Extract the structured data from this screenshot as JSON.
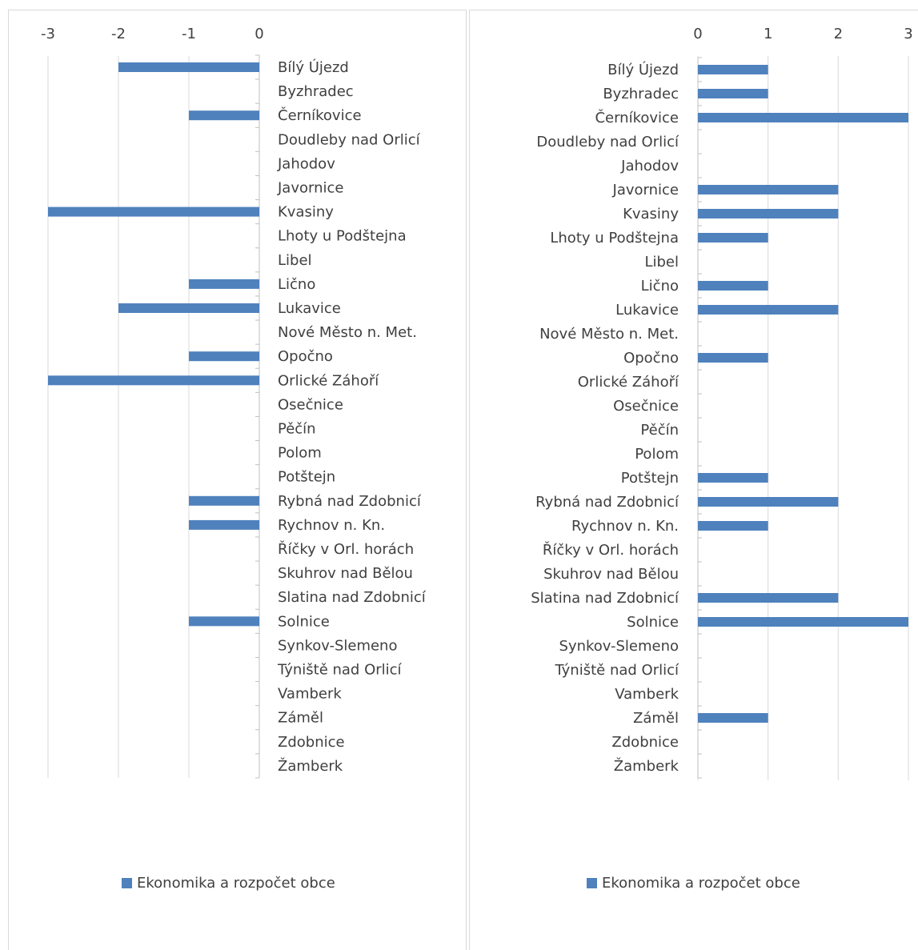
{
  "chart_data": [
    {
      "type": "bar",
      "orientation": "horizontal",
      "categories": [
        "Bílý Újezd",
        "Byzhradec",
        "Černíkovice",
        "Doudleby nad Orlicí",
        "Jahodov",
        "Javornice",
        "Kvasiny",
        "Lhoty u Podštejna",
        "Libel",
        "Lično",
        "Lukavice",
        "Nové Město n. Met.",
        "Opočno",
        "Orlické Záhoří",
        "Osečnice",
        "Pěčín",
        "Polom",
        "Potštejn",
        "Rybná nad Zdobnicí",
        "Rychnov n. Kn.",
        "Říčky v Orl. horách",
        "Skuhrov nad Bělou",
        "Slatina nad Zdobnicí",
        "Solnice",
        "Synkov-Slemeno",
        "Týniště nad Orlicí",
        "Vamberk",
        "Záměl",
        "Zdobnice",
        "Žamberk"
      ],
      "series": [
        {
          "name": "Ekonomika a rozpočet obce",
          "values": [
            -2,
            0,
            -1,
            0,
            0,
            0,
            -3,
            0,
            0,
            -1,
            -2,
            0,
            -1,
            -3,
            0,
            0,
            0,
            0,
            -1,
            -1,
            0,
            0,
            0,
            -1,
            0,
            0,
            0,
            0,
            0,
            0
          ]
        }
      ],
      "xlim": [
        -3,
        0
      ],
      "ticks": [
        "-3",
        "-2",
        "-1",
        "0"
      ],
      "axis_position": "top",
      "grid": true,
      "legend_position": "bottom",
      "color": "#4f81bd"
    },
    {
      "type": "bar",
      "orientation": "horizontal",
      "categories": [
        "Bílý Újezd",
        "Byzhradec",
        "Černíkovice",
        "Doudleby nad Orlicí",
        "Jahodov",
        "Javornice",
        "Kvasiny",
        "Lhoty u Podštejna",
        "Libel",
        "Lično",
        "Lukavice",
        "Nové Město n. Met.",
        "Opočno",
        "Orlické Záhoří",
        "Osečnice",
        "Pěčín",
        "Polom",
        "Potštejn",
        "Rybná nad Zdobnicí",
        "Rychnov n. Kn.",
        "Říčky v Orl. horách",
        "Skuhrov nad Bělou",
        "Slatina nad Zdobnicí",
        "Solnice",
        "Synkov-Slemeno",
        "Týniště nad Orlicí",
        "Vamberk",
        "Záměl",
        "Zdobnice",
        "Žamberk"
      ],
      "series": [
        {
          "name": "Ekonomika a rozpočet obce",
          "values": [
            1,
            1,
            3,
            0,
            0,
            2,
            2,
            1,
            0,
            1,
            2,
            0,
            1,
            0,
            0,
            0,
            0,
            1,
            2,
            1,
            0,
            0,
            2,
            3,
            0,
            0,
            0,
            1,
            0,
            0
          ]
        }
      ],
      "xlim": [
        0,
        3
      ],
      "ticks": [
        "0",
        "1",
        "2",
        "3"
      ],
      "axis_position": "top",
      "grid": true,
      "legend_position": "bottom",
      "color": "#4f81bd"
    }
  ]
}
